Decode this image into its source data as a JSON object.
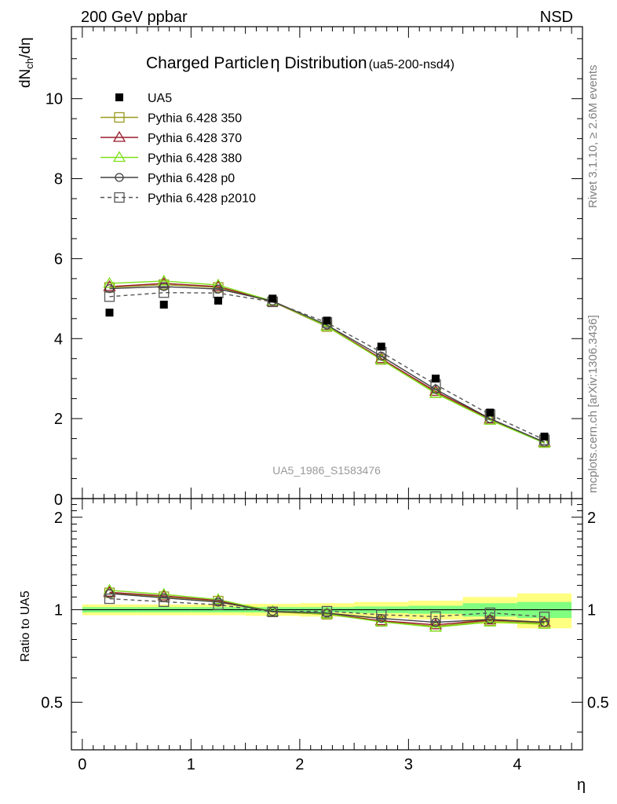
{
  "header": {
    "left": "200 GeV ppbar",
    "right": "NSD"
  },
  "title": {
    "main_a": "Charged Particle",
    "main_eta": "η",
    "main_b": " Distribution",
    "tag": "(ua5-200-nsd4)"
  },
  "side_labels": {
    "rivet": "Rivet 3.1.10, ≥ 2.6M events",
    "mcplots": "mcplots.cern.ch [arXiv:1306.3436]"
  },
  "watermark": "UA5_1986_S1583476",
  "axis": {
    "ylabel_main_d": "dN",
    "ylabel_main_sub": "ch",
    "ylabel_main_rest": "/dη",
    "ylabel_ratio": "Ratio to UA5",
    "xlabel": "η",
    "main_yticks": [
      "0",
      "2",
      "4",
      "6",
      "8",
      "10"
    ],
    "ratio_yticks": [
      "0.5",
      "1",
      "2"
    ],
    "ratio_yticks_right": [
      "0.5",
      "1",
      "2"
    ],
    "xticks": [
      "0",
      "1",
      "2",
      "3",
      "4"
    ]
  },
  "legend": [
    {
      "label": "UA5",
      "color": "#000000",
      "marker": "square-filled",
      "line": "none"
    },
    {
      "label": "Pythia 6.428 350",
      "color": "#9a9a20",
      "marker": "square-open",
      "line": "solid"
    },
    {
      "label": "Pythia 6.428 370",
      "color": "#9b1b2d",
      "marker": "triangle-open",
      "line": "solid"
    },
    {
      "label": "Pythia 6.428 380",
      "color": "#7fe01a",
      "marker": "triangle-open",
      "line": "solid"
    },
    {
      "label": "Pythia 6.428 p0",
      "color": "#404040",
      "marker": "circle-open",
      "line": "solid"
    },
    {
      "label": "Pythia 6.428 p2010",
      "color": "#555555",
      "marker": "square-open",
      "line": "dashed"
    }
  ],
  "chart_data": {
    "type": "line",
    "x": [
      0.25,
      0.75,
      1.25,
      1.75,
      2.25,
      2.75,
      3.25,
      3.75,
      4.25
    ],
    "xlim": [
      -0.1,
      4.6
    ],
    "ylim": [
      0,
      11.8
    ],
    "ratio_ylim": [
      0.35,
      2.3
    ],
    "ratio_scale": "log",
    "series": [
      {
        "name": "UA5",
        "type": "data",
        "values": [
          4.65,
          4.85,
          4.95,
          5.0,
          4.45,
          3.8,
          3.0,
          2.15,
          1.55
        ]
      },
      {
        "name": "Pythia 6.428 350",
        "values": [
          5.28,
          5.35,
          5.28,
          4.92,
          4.3,
          3.48,
          2.65,
          1.98,
          1.4
        ]
      },
      {
        "name": "Pythia 6.428 370",
        "values": [
          5.3,
          5.38,
          5.3,
          4.93,
          4.32,
          3.5,
          2.68,
          1.99,
          1.41
        ]
      },
      {
        "name": "Pythia 6.428 380",
        "values": [
          5.38,
          5.44,
          5.34,
          4.94,
          4.31,
          3.47,
          2.63,
          1.96,
          1.39
        ]
      },
      {
        "name": "Pythia 6.428 p0",
        "values": [
          5.25,
          5.3,
          5.24,
          4.94,
          4.34,
          3.56,
          2.73,
          2.0,
          1.41
        ]
      },
      {
        "name": "Pythia 6.428 p2010",
        "values": [
          5.05,
          5.15,
          5.14,
          4.92,
          4.4,
          3.66,
          2.85,
          2.1,
          1.47
        ]
      }
    ],
    "ratio_series": [
      {
        "name": "Pythia 6.428 350",
        "values": [
          1.135,
          1.103,
          1.067,
          0.984,
          0.966,
          0.916,
          0.883,
          0.921,
          0.903
        ]
      },
      {
        "name": "Pythia 6.428 370",
        "values": [
          1.14,
          1.109,
          1.071,
          0.986,
          0.971,
          0.921,
          0.893,
          0.926,
          0.91
        ]
      },
      {
        "name": "Pythia 6.428 380",
        "values": [
          1.157,
          1.122,
          1.079,
          0.988,
          0.969,
          0.913,
          0.877,
          0.912,
          0.897
        ]
      },
      {
        "name": "Pythia 6.428 p0",
        "values": [
          1.129,
          1.093,
          1.059,
          0.988,
          0.975,
          0.937,
          0.91,
          0.93,
          0.91
        ]
      },
      {
        "name": "Pythia 6.428 p2010",
        "values": [
          1.086,
          1.062,
          1.038,
          0.984,
          0.989,
          0.963,
          0.95,
          0.977,
          0.948
        ]
      }
    ],
    "uncertainty_bands": {
      "bins": [
        [
          0,
          0.5
        ],
        [
          0.5,
          1.0
        ],
        [
          1.0,
          1.5
        ],
        [
          1.5,
          2.0
        ],
        [
          2.0,
          2.5
        ],
        [
          2.5,
          3.0
        ],
        [
          3.0,
          3.5
        ],
        [
          3.5,
          4.0
        ],
        [
          4.0,
          4.5
        ]
      ],
      "stat_halfwidth": [
        0.02,
        0.02,
        0.02,
        0.02,
        0.02,
        0.025,
        0.03,
        0.05,
        0.06
      ],
      "total_halfwidth": [
        0.04,
        0.04,
        0.04,
        0.045,
        0.05,
        0.06,
        0.07,
        0.1,
        0.13
      ],
      "stat_color": "#80ff80",
      "total_color": "#ffff80"
    }
  }
}
